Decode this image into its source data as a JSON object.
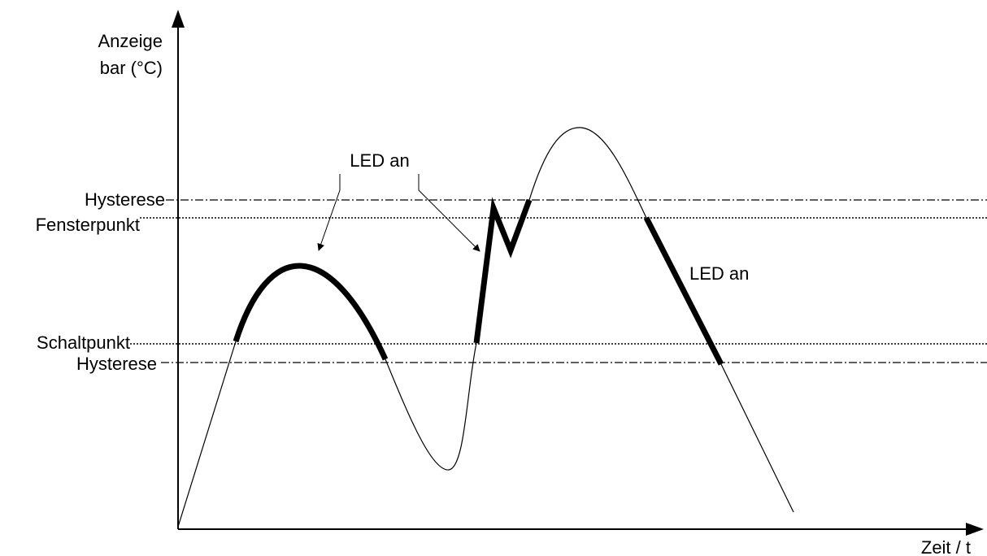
{
  "diagram": {
    "y_axis_label_line1": "Anzeige",
    "y_axis_label_line2": "bar (°C)",
    "x_axis_label": "Zeit / t",
    "levels": {
      "hysteresis_upper": "Hysterese",
      "window_point": "Fensterpunkt",
      "switch_point": "Schaltpunkt",
      "hysteresis_lower": "Hysterese"
    },
    "annotation_led_on_1": "LED an",
    "annotation_led_on_2": "LED an",
    "colors": {
      "line": "#000000",
      "background": "#ffffff"
    }
  }
}
